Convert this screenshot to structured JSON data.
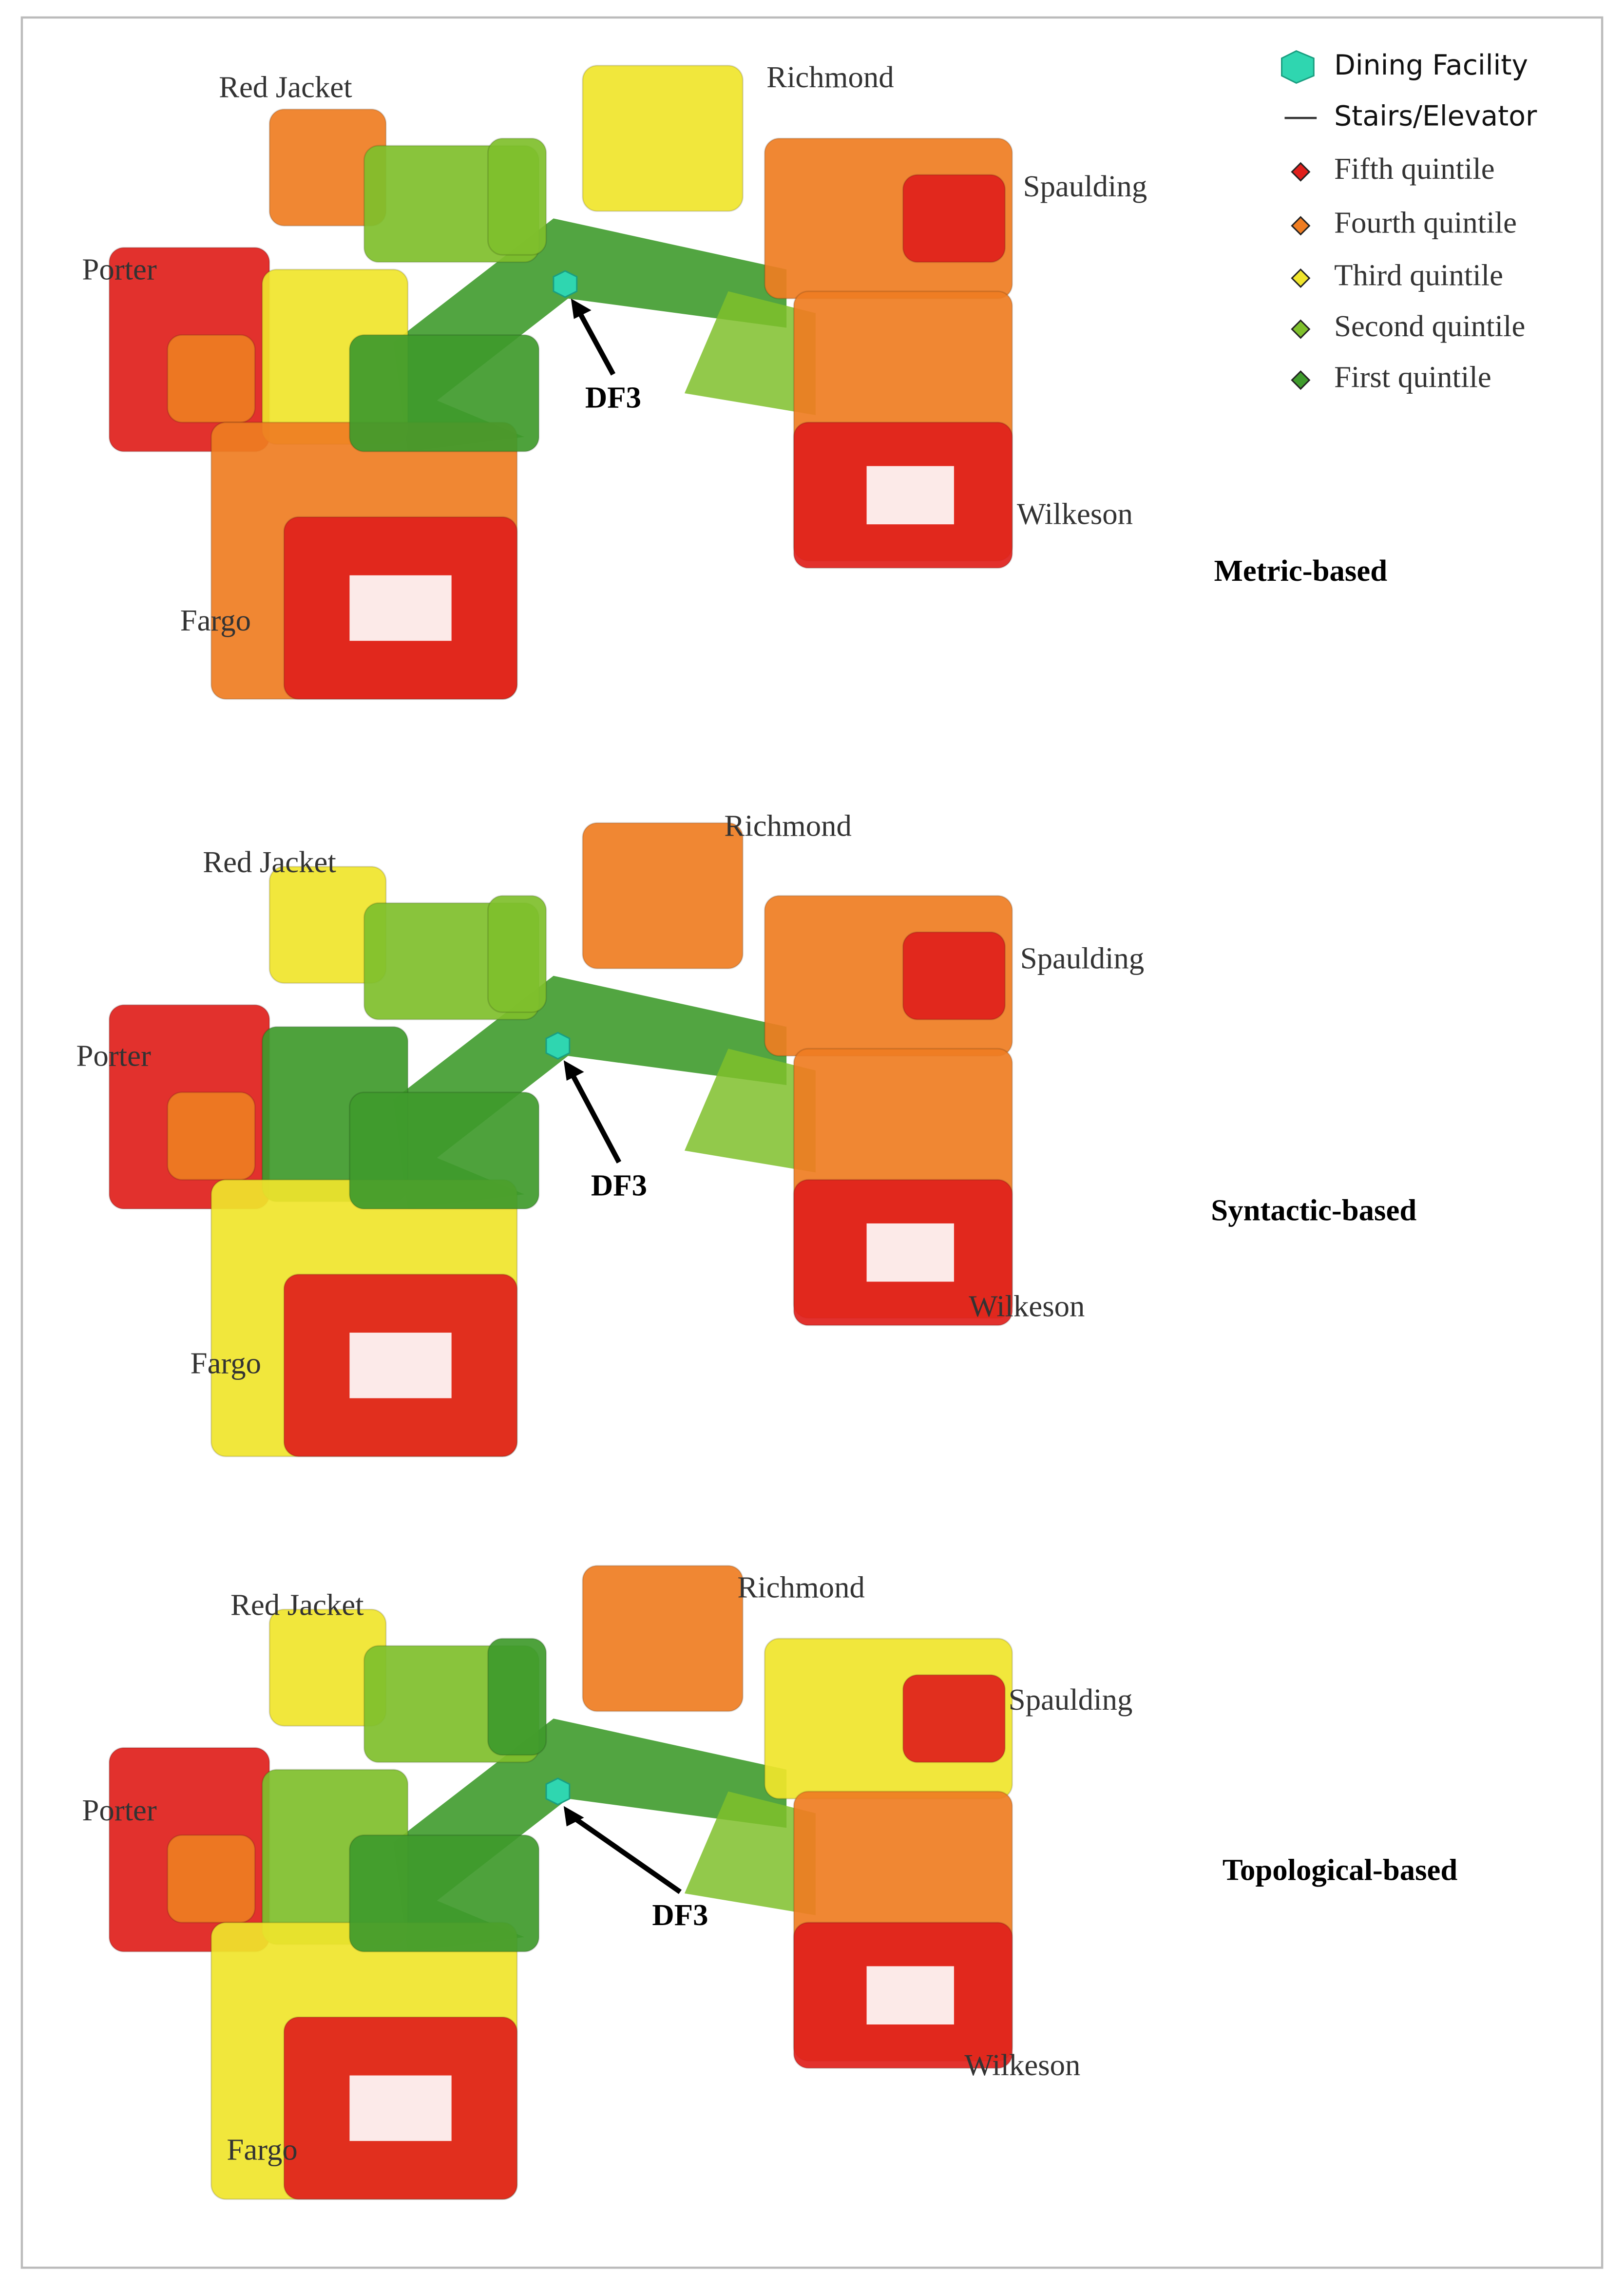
{
  "legend": {
    "items": [
      "Dining Facility",
      "Stairs/Elevator",
      "Fifth quintile",
      "Fourth quintile",
      "Third quintile",
      "Second quintile",
      "First quintile"
    ]
  },
  "panels": [
    {
      "title": "Metric-based",
      "labels": [
        "Red Jacket",
        "Richmond",
        "Spaulding",
        "Porter",
        "Wilkeson",
        "Fargo"
      ],
      "marker": "DF3"
    },
    {
      "title": "Syntactic-based",
      "labels": [
        "Red Jacket",
        "Richmond",
        "Spaulding",
        "Porter",
        "Wilkeson",
        "Fargo"
      ],
      "marker": "DF3"
    },
    {
      "title": "Topological-based",
      "labels": [
        "Red Jacket",
        "Richmond",
        "Spaulding",
        "Porter",
        "Wilkeson",
        "Fargo"
      ],
      "marker": "DF3"
    }
  ]
}
